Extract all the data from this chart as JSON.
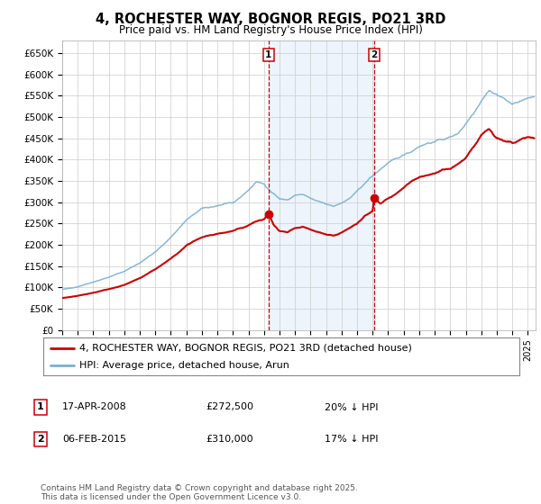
{
  "title": "4, ROCHESTER WAY, BOGNOR REGIS, PO21 3RD",
  "subtitle": "Price paid vs. HM Land Registry's House Price Index (HPI)",
  "ylim": [
    0,
    680000
  ],
  "xlim_start": 1995.0,
  "xlim_end": 2025.5,
  "yticks": [
    0,
    50000,
    100000,
    150000,
    200000,
    250000,
    300000,
    350000,
    400000,
    450000,
    500000,
    550000,
    600000,
    650000
  ],
  "ytick_labels": [
    "£0",
    "£50K",
    "£100K",
    "£150K",
    "£200K",
    "£250K",
    "£300K",
    "£350K",
    "£400K",
    "£450K",
    "£500K",
    "£550K",
    "£600K",
    "£650K"
  ],
  "hpi_color": "#7bafd4",
  "price_color": "#cc0000",
  "marker_color": "#cc0000",
  "vline_color": "#cc0000",
  "shade_color": "#cce0f5",
  "grid_color": "#cccccc",
  "background_color": "#ffffff",
  "sale1_x": 2008.29,
  "sale1_y": 272500,
  "sale1_label": "1",
  "sale2_x": 2015.09,
  "sale2_y": 310000,
  "sale2_label": "2",
  "legend_label_red": "4, ROCHESTER WAY, BOGNOR REGIS, PO21 3RD (detached house)",
  "legend_label_blue": "HPI: Average price, detached house, Arun",
  "table_rows": [
    {
      "num": "1",
      "date": "17-APR-2008",
      "price": "£272,500",
      "hpi": "20% ↓ HPI"
    },
    {
      "num": "2",
      "date": "06-FEB-2015",
      "price": "£310,000",
      "hpi": "17% ↓ HPI"
    }
  ],
  "footnote": "Contains HM Land Registry data © Crown copyright and database right 2025.\nThis data is licensed under the Open Government Licence v3.0.",
  "title_fontsize": 10.5,
  "subtitle_fontsize": 8.5,
  "tick_fontsize": 7.5,
  "legend_fontsize": 8,
  "table_fontsize": 8,
  "footnote_fontsize": 6.5,
  "hpi_anchors": [
    [
      1995.0,
      95000
    ],
    [
      1996.0,
      102000
    ],
    [
      1997.0,
      113000
    ],
    [
      1998.0,
      124000
    ],
    [
      1999.0,
      138000
    ],
    [
      2000.0,
      158000
    ],
    [
      2001.0,
      183000
    ],
    [
      2002.0,
      218000
    ],
    [
      2003.0,
      258000
    ],
    [
      2004.0,
      285000
    ],
    [
      2005.0,
      292000
    ],
    [
      2006.0,
      298000
    ],
    [
      2007.0,
      328000
    ],
    [
      2007.5,
      348000
    ],
    [
      2008.0,
      342000
    ],
    [
      2008.5,
      325000
    ],
    [
      2009.0,
      308000
    ],
    [
      2009.5,
      305000
    ],
    [
      2010.0,
      316000
    ],
    [
      2010.5,
      318000
    ],
    [
      2011.0,
      308000
    ],
    [
      2011.5,
      302000
    ],
    [
      2012.0,
      296000
    ],
    [
      2012.5,
      292000
    ],
    [
      2013.0,
      298000
    ],
    [
      2013.5,
      308000
    ],
    [
      2014.0,
      325000
    ],
    [
      2014.5,
      345000
    ],
    [
      2015.0,
      362000
    ],
    [
      2015.5,
      378000
    ],
    [
      2016.0,
      392000
    ],
    [
      2016.5,
      400000
    ],
    [
      2017.0,
      412000
    ],
    [
      2017.5,
      420000
    ],
    [
      2018.0,
      432000
    ],
    [
      2018.5,
      438000
    ],
    [
      2019.0,
      442000
    ],
    [
      2019.5,
      448000
    ],
    [
      2020.0,
      452000
    ],
    [
      2020.5,
      462000
    ],
    [
      2021.0,
      485000
    ],
    [
      2021.5,
      510000
    ],
    [
      2022.0,
      540000
    ],
    [
      2022.5,
      563000
    ],
    [
      2023.0,
      552000
    ],
    [
      2023.5,
      542000
    ],
    [
      2024.0,
      532000
    ],
    [
      2024.5,
      535000
    ],
    [
      2025.0,
      545000
    ],
    [
      2025.4,
      548000
    ]
  ],
  "price_anchors": [
    [
      1995.0,
      75000
    ],
    [
      1996.0,
      80000
    ],
    [
      1997.0,
      88000
    ],
    [
      1998.0,
      96000
    ],
    [
      1999.0,
      106000
    ],
    [
      2000.0,
      122000
    ],
    [
      2001.0,
      143000
    ],
    [
      2002.0,
      168000
    ],
    [
      2003.0,
      198000
    ],
    [
      2004.0,
      218000
    ],
    [
      2005.0,
      226000
    ],
    [
      2006.0,
      232000
    ],
    [
      2007.0,
      246000
    ],
    [
      2007.5,
      255000
    ],
    [
      2008.0,
      260000
    ],
    [
      2008.29,
      272500
    ],
    [
      2008.6,
      248000
    ],
    [
      2009.0,
      232000
    ],
    [
      2009.5,
      228000
    ],
    [
      2010.0,
      238000
    ],
    [
      2010.5,
      242000
    ],
    [
      2011.0,
      235000
    ],
    [
      2011.5,
      230000
    ],
    [
      2012.0,
      225000
    ],
    [
      2012.5,
      222000
    ],
    [
      2013.0,
      228000
    ],
    [
      2013.5,
      238000
    ],
    [
      2014.0,
      252000
    ],
    [
      2014.5,
      268000
    ],
    [
      2015.0,
      280000
    ],
    [
      2015.09,
      310000
    ],
    [
      2015.5,
      295000
    ],
    [
      2016.0,
      308000
    ],
    [
      2016.5,
      318000
    ],
    [
      2017.0,
      335000
    ],
    [
      2017.5,
      348000
    ],
    [
      2018.0,
      358000
    ],
    [
      2018.5,
      365000
    ],
    [
      2019.0,
      368000
    ],
    [
      2019.5,
      375000
    ],
    [
      2020.0,
      378000
    ],
    [
      2020.5,
      390000
    ],
    [
      2021.0,
      402000
    ],
    [
      2021.5,
      428000
    ],
    [
      2022.0,
      456000
    ],
    [
      2022.5,
      472000
    ],
    [
      2023.0,
      452000
    ],
    [
      2023.5,
      442000
    ],
    [
      2024.0,
      438000
    ],
    [
      2024.5,
      448000
    ],
    [
      2025.0,
      455000
    ],
    [
      2025.4,
      450000
    ]
  ]
}
